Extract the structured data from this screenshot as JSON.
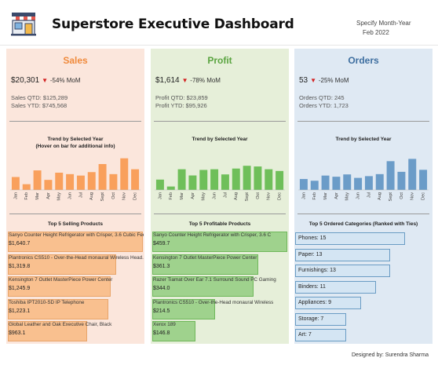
{
  "header": {
    "title": "Superstore Executive Dashboard",
    "filter_label": "Specify Month-Year",
    "filter_value": "Feb 2022",
    "logo_icon": "storefront-icon"
  },
  "credit": "Designed by: Surendra Sharma",
  "panels": {
    "sales": {
      "title": "Sales",
      "kpi_value": "$20,301",
      "kpi_change": "-54% MoM",
      "sub1": "Sales QTD: $125,289",
      "sub2": "Sales YTD: $745,568",
      "trend_title": "Trend by Selected Year",
      "trend_subtitle": "(Hover on bar for additional info)",
      "list_title": "Top 5 Selling Products",
      "color": "#f9a05c"
    },
    "profit": {
      "title": "Profit",
      "kpi_value": "$1,614",
      "kpi_change": "-78% MoM",
      "sub1": "Profit QTD: $23,859",
      "sub2": "Profit YTD: $95,926",
      "trend_title": "Trend by Selected Year",
      "list_title": "Top 5 Profitable Products",
      "color": "#6fbf5a"
    },
    "orders": {
      "title": "Orders",
      "kpi_value": "53",
      "kpi_change": "-25% MoM",
      "sub1": "Orders QTD: 245",
      "sub2": "Orders YTD: 1,723",
      "trend_title": "Trend by Selected Year",
      "list_title": "Top 5 Ordered Categories (Ranked with Ties)",
      "color": "#6b9cc8"
    }
  },
  "chart_data": [
    {
      "type": "bar",
      "name": "sales-trend",
      "categories": [
        "Jan",
        "Feb",
        "Mar",
        "Apr",
        "May",
        "Jun",
        "Jul",
        "Aug",
        "Sept",
        "Oct",
        "Nov",
        "Dec"
      ],
      "values": [
        45,
        20,
        68,
        35,
        60,
        55,
        50,
        62,
        90,
        55,
        110,
        72
      ],
      "ylim": [
        0,
        120
      ]
    },
    {
      "type": "bar",
      "name": "profit-trend",
      "categories": [
        "Jan",
        "Feb",
        "Mar",
        "Apr",
        "May",
        "Jun",
        "Jul",
        "Aug",
        "Sept",
        "Oct",
        "Nov",
        "Dec"
      ],
      "values": [
        30,
        10,
        60,
        42,
        58,
        60,
        45,
        62,
        70,
        68,
        60,
        55
      ],
      "ylim": [
        0,
        100
      ]
    },
    {
      "type": "bar",
      "name": "orders-trend",
      "categories": [
        "Jan",
        "Feb",
        "Mar",
        "Apr",
        "May",
        "Jun",
        "Jul",
        "Aug",
        "Sept",
        "Oct",
        "Nov",
        "Dec"
      ],
      "values": [
        38,
        32,
        50,
        46,
        54,
        42,
        48,
        55,
        100,
        63,
        108,
        70
      ],
      "ylim": [
        0,
        120
      ]
    },
    {
      "type": "bar",
      "name": "top-selling-products",
      "categories": [
        "Sanyo Counter Height Refrigerator with Crisper, 3.6 Cubic Fee",
        "Plantronics CS510 - Over-the-Head monaural Wireless Head...",
        "Kensington 7 Outlet MasterPiece Power Center",
        "Toshiba IPT2010-SD IP Telephone",
        "Global Leather and Oak Executive Chair, Black"
      ],
      "values": [
        1640.7,
        1319.8,
        1245.9,
        1223.1,
        963.1
      ],
      "labels": [
        "$1,640.7",
        "$1,319.8",
        "$1,245.9",
        "$1,223.1",
        "$963.1"
      ]
    },
    {
      "type": "bar",
      "name": "top-profitable-products",
      "categories": [
        "Sanyo Counter Height Refrigerator with Crisper, 3.6 C",
        "Kensington 7 Outlet MasterPiece Power Center",
        "Razer Tiamat Over Ear 7.1 Surround Sound PC Gaming",
        "Plantronics CS510 - Over-the-Head monaural Wireless",
        "Xerox 189"
      ],
      "values": [
        459.7,
        361.3,
        344.0,
        214.5,
        146.8
      ],
      "labels": [
        "$459.7",
        "$361.3",
        "$344.0",
        "$214.5",
        "$146.8"
      ]
    },
    {
      "type": "bar",
      "name": "top-ordered-categories",
      "categories": [
        "Phones",
        "Paper",
        "Furnishings",
        "Binders",
        "Appliances",
        "Storage",
        "Art"
      ],
      "values": [
        15,
        13,
        13,
        11,
        9,
        7,
        7
      ],
      "labels": [
        "Phones: 15",
        "Paper: 13",
        "Furnishings: 13",
        "Binders: 11",
        "Appliances: 9",
        "Storage: 7",
        "Art: 7"
      ]
    }
  ]
}
